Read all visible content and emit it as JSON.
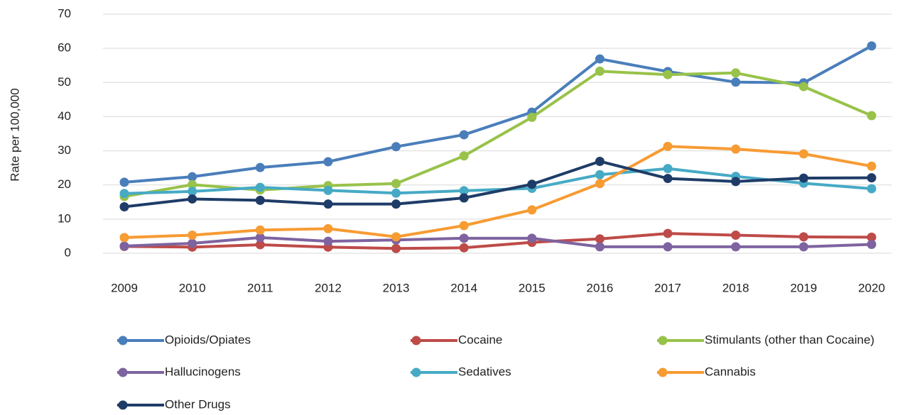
{
  "chart_data": {
    "type": "line",
    "y_label": "Rate per 100,000",
    "categories": [
      "2009",
      "2010",
      "2011",
      "2012",
      "2013",
      "2014",
      "2015",
      "2016",
      "2017",
      "2018",
      "2019",
      "2020"
    ],
    "series": [
      {
        "name": "Opioids/Opiates",
        "color": "#4a7ebb",
        "values": [
          20.8,
          22.4,
          25.1,
          26.8,
          31.2,
          34.7,
          41.3,
          56.9,
          53.2,
          50.1,
          49.9,
          60.7
        ]
      },
      {
        "name": "Cocaine",
        "color": "#be4b48",
        "values": [
          2.0,
          1.8,
          2.5,
          1.8,
          1.4,
          1.6,
          3.2,
          4.2,
          5.8,
          5.3,
          4.8,
          4.7
        ]
      },
      {
        "name": "Stimulants (other than Cocaine)",
        "color": "#98c24a",
        "values": [
          16.6,
          20.1,
          18.5,
          19.8,
          20.4,
          28.5,
          39.8,
          53.3,
          52.3,
          52.8,
          48.8,
          40.3
        ]
      },
      {
        "name": "Hallucinogens",
        "color": "#7e63a0",
        "values": [
          2.1,
          2.9,
          4.6,
          3.5,
          3.9,
          4.4,
          4.4,
          1.9,
          1.9,
          1.9,
          1.9,
          2.6
        ]
      },
      {
        "name": "Sedatives",
        "color": "#46aac5",
        "values": [
          17.5,
          18.1,
          19.3,
          18.4,
          17.6,
          18.3,
          19.0,
          23.0,
          24.8,
          22.5,
          20.5,
          18.9
        ]
      },
      {
        "name": "Cannabis",
        "color": "#f79b33",
        "values": [
          4.6,
          5.3,
          6.8,
          7.2,
          4.8,
          8.1,
          12.7,
          20.4,
          31.3,
          30.5,
          29.1,
          25.5
        ]
      },
      {
        "name": "Other Drugs",
        "color": "#1f3c68",
        "values": [
          13.6,
          15.9,
          15.5,
          14.4,
          14.4,
          16.2,
          20.2,
          26.9,
          21.9,
          21.0,
          22.0,
          22.1
        ]
      }
    ],
    "ylim": [
      0,
      70
    ],
    "yticks": [
      0,
      10,
      20,
      30,
      40,
      50,
      60,
      70
    ],
    "grid": true,
    "legend": "bottom"
  }
}
